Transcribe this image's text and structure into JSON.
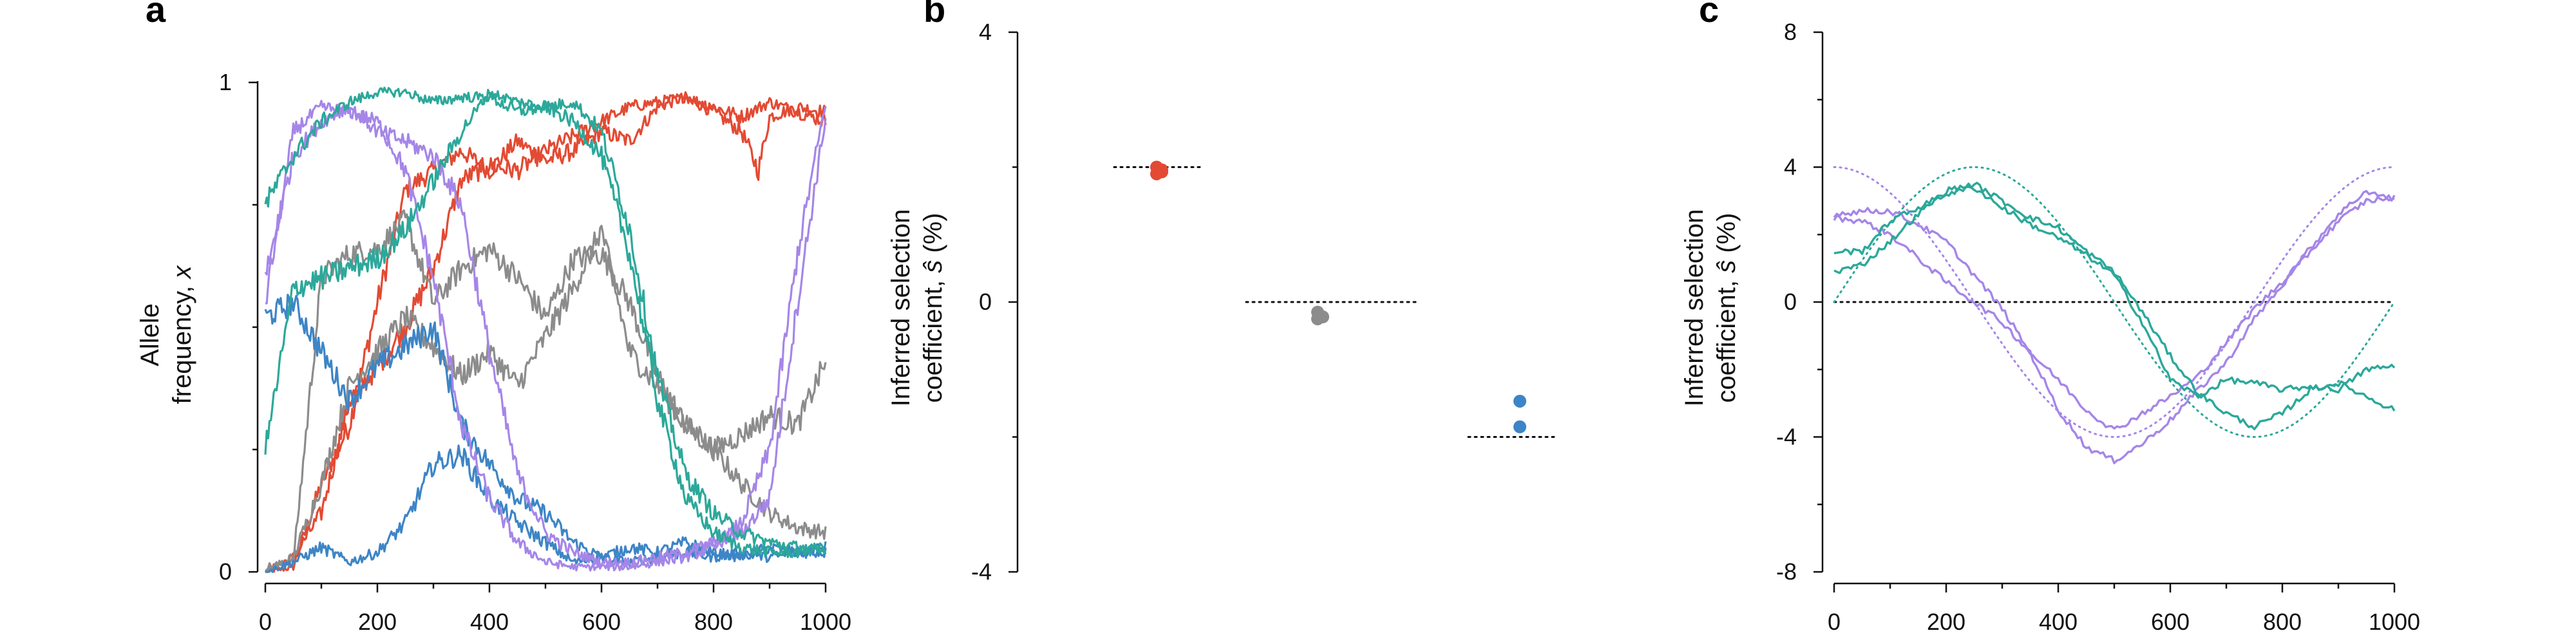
{
  "colors": {
    "red": "#e34a33",
    "gray": "#8c8c8c",
    "blue": "#3d85c6",
    "purple": "#a586e8",
    "teal": "#2ca89a",
    "axis": "#111111"
  },
  "chart_data": [
    {
      "panel": "a",
      "type": "line",
      "ylabel_lines": [
        "Allele",
        "frequency,"
      ],
      "ylabel_var": "x",
      "xlim": [
        0,
        1000
      ],
      "ylim": [
        0,
        1
      ],
      "x_ticks": [
        "0",
        "200",
        "400",
        "600",
        "800",
        "1000"
      ],
      "y_ticks": [
        "0",
        "1"
      ],
      "series": [
        {
          "color": "red",
          "x": [
            0,
            50,
            100,
            150,
            200,
            250,
            300,
            350,
            400,
            450,
            500,
            550,
            600,
            650,
            700,
            750,
            800,
            850,
            880,
            900,
            950,
            1000
          ],
          "y": [
            0.0,
            0.01,
            0.18,
            0.3,
            0.55,
            0.78,
            0.82,
            0.86,
            0.82,
            0.88,
            0.84,
            0.86,
            0.9,
            0.88,
            0.95,
            0.97,
            0.94,
            0.9,
            0.82,
            0.93,
            0.95,
            0.94
          ]
        },
        {
          "color": "red",
          "x": [
            0,
            50,
            100,
            150,
            200,
            250,
            300,
            350,
            400,
            450,
            500,
            550,
            600,
            650,
            700,
            750,
            800,
            850,
            900,
            950,
            1000
          ],
          "y": [
            0.0,
            0.03,
            0.12,
            0.35,
            0.42,
            0.5,
            0.62,
            0.8,
            0.83,
            0.82,
            0.86,
            0.89,
            0.92,
            0.95,
            0.96,
            0.97,
            0.95,
            0.93,
            0.96,
            0.94,
            0.92
          ]
        },
        {
          "color": "gray",
          "x": [
            0,
            50,
            100,
            150,
            200,
            250,
            300,
            350,
            400,
            450,
            500,
            550,
            600,
            650,
            700,
            750,
            800,
            850,
            900,
            950,
            1000
          ],
          "y": [
            0.01,
            0.02,
            0.6,
            0.65,
            0.66,
            0.72,
            0.55,
            0.62,
            0.66,
            0.6,
            0.52,
            0.64,
            0.65,
            0.55,
            0.4,
            0.3,
            0.25,
            0.18,
            0.12,
            0.09,
            0.08
          ]
        },
        {
          "color": "gray",
          "x": [
            0,
            50,
            100,
            150,
            200,
            250,
            300,
            350,
            400,
            450,
            500,
            550,
            600,
            650,
            700,
            750,
            800,
            850,
            900,
            950,
            1000
          ],
          "y": [
            0.0,
            0.03,
            0.18,
            0.38,
            0.45,
            0.52,
            0.46,
            0.4,
            0.45,
            0.38,
            0.48,
            0.58,
            0.7,
            0.45,
            0.38,
            0.3,
            0.25,
            0.28,
            0.32,
            0.3,
            0.43
          ]
        },
        {
          "color": "blue",
          "x": [
            0,
            50,
            100,
            150,
            200,
            250,
            300,
            350,
            400,
            450,
            500,
            550,
            600,
            650,
            700,
            750,
            800,
            850,
            900,
            950,
            1000
          ],
          "y": [
            0.52,
            0.55,
            0.45,
            0.35,
            0.42,
            0.46,
            0.5,
            0.3,
            0.22,
            0.15,
            0.12,
            0.06,
            0.03,
            0.02,
            0.03,
            0.04,
            0.03,
            0.04,
            0.03,
            0.04,
            0.04
          ]
        },
        {
          "color": "blue",
          "x": [
            0,
            50,
            100,
            150,
            200,
            250,
            300,
            350,
            400,
            450,
            500,
            550,
            600,
            650,
            700,
            750,
            800,
            850,
            900,
            950,
            1000
          ],
          "y": [
            0.0,
            0.02,
            0.05,
            0.02,
            0.04,
            0.1,
            0.22,
            0.24,
            0.15,
            0.1,
            0.06,
            0.02,
            0.03,
            0.05,
            0.04,
            0.06,
            0.04,
            0.03,
            0.05,
            0.04,
            0.05
          ]
        },
        {
          "color": "purple",
          "x": [
            0,
            50,
            100,
            150,
            200,
            250,
            300,
            350,
            400,
            450,
            500,
            550,
            600,
            650,
            700,
            750,
            800,
            850,
            900,
            950,
            1000
          ],
          "y": [
            0.55,
            0.9,
            0.95,
            0.94,
            0.92,
            0.82,
            0.6,
            0.3,
            0.15,
            0.06,
            0.02,
            0.01,
            0.01,
            0.01,
            0.02,
            0.03,
            0.05,
            0.1,
            0.25,
            0.65,
            0.96
          ]
        },
        {
          "color": "purple",
          "x": [
            0,
            50,
            100,
            150,
            200,
            250,
            300,
            350,
            400,
            450,
            500,
            550,
            600,
            650,
            700,
            750,
            800,
            850,
            900,
            950,
            1000
          ],
          "y": [
            0.6,
            0.85,
            0.92,
            0.95,
            0.9,
            0.88,
            0.85,
            0.75,
            0.45,
            0.2,
            0.08,
            0.04,
            0.02,
            0.02,
            0.03,
            0.04,
            0.06,
            0.08,
            0.15,
            0.55,
            0.93
          ]
        },
        {
          "color": "teal",
          "x": [
            0,
            50,
            100,
            150,
            200,
            250,
            300,
            350,
            400,
            450,
            500,
            550,
            600,
            650,
            700,
            750,
            800,
            850,
            900,
            950,
            1000
          ],
          "y": [
            0.75,
            0.85,
            0.92,
            0.96,
            0.98,
            0.98,
            0.96,
            0.97,
            0.97,
            0.94,
            0.95,
            0.92,
            0.85,
            0.65,
            0.35,
            0.15,
            0.08,
            0.05,
            0.04,
            0.04,
            0.05
          ]
        },
        {
          "color": "teal",
          "x": [
            0,
            50,
            100,
            150,
            200,
            250,
            300,
            350,
            400,
            450,
            500,
            550,
            600,
            650,
            700,
            750,
            800,
            850,
            900,
            950,
            1000
          ],
          "y": [
            0.25,
            0.58,
            0.6,
            0.62,
            0.64,
            0.7,
            0.8,
            0.9,
            0.98,
            0.96,
            0.95,
            0.96,
            0.9,
            0.7,
            0.4,
            0.2,
            0.12,
            0.08,
            0.06,
            0.05,
            0.04
          ]
        }
      ]
    },
    {
      "panel": "b",
      "type": "scatter",
      "ylabel_lines": [
        "Inferred selection",
        "coefficient,"
      ],
      "ylabel_var": "ŝ",
      "ylabel_unit": "(%)",
      "ylim": [
        -4,
        4
      ],
      "y_ticks": [
        "-4",
        "0",
        "4"
      ],
      "groups": [
        {
          "color": "red",
          "true_value": 2,
          "inferred": [
            1.9,
            1.96,
            2.0,
            1.93
          ]
        },
        {
          "color": "gray",
          "true_value": 0,
          "inferred": [
            -0.15,
            -0.22,
            -0.25
          ]
        },
        {
          "color": "blue",
          "true_value": -2,
          "inferred": [
            -1.47,
            -1.85
          ]
        }
      ]
    },
    {
      "panel": "c",
      "type": "line",
      "ylabel_lines": [
        "Inferred selection",
        "coefficient,"
      ],
      "ylabel_var": "ŝ",
      "ylabel_unit": "(%)",
      "xlim": [
        0,
        1000
      ],
      "ylim": [
        -8,
        8
      ],
      "x_ticks": [
        "0",
        "200",
        "400",
        "600",
        "800",
        "1000"
      ],
      "y_ticks": [
        "-8",
        "-4",
        "0",
        "4",
        "8"
      ],
      "true_curves": [
        {
          "color": "purple",
          "form": "4*cos(2*pi*t/1000)"
        },
        {
          "color": "teal",
          "form": "4*sin(2*pi*t/1000)"
        }
      ],
      "series": [
        {
          "color": "purple",
          "x": [
            0,
            50,
            100,
            150,
            200,
            250,
            300,
            350,
            400,
            450,
            500,
            550,
            600,
            650,
            700,
            750,
            800,
            850,
            900,
            950,
            1000
          ],
          "y": [
            2.6,
            2.7,
            2.7,
            2.3,
            1.8,
            0.8,
            -0.2,
            -1.5,
            -3.2,
            -4.3,
            -4.7,
            -4.2,
            -3.5,
            -2.6,
            -1.8,
            -0.5,
            0.5,
            1.5,
            2.4,
            3.0,
            3.1
          ]
        },
        {
          "color": "purple",
          "x": [
            0,
            50,
            100,
            150,
            200,
            250,
            300,
            350,
            400,
            450,
            500,
            550,
            600,
            650,
            700,
            750,
            800,
            850,
            900,
            950,
            1000
          ],
          "y": [
            2.5,
            2.4,
            2.0,
            1.3,
            0.6,
            0.0,
            -0.6,
            -1.5,
            -2.3,
            -3.2,
            -3.8,
            -3.3,
            -2.8,
            -2.2,
            -1.2,
            -0.2,
            0.6,
            1.6,
            2.6,
            3.3,
            3.0
          ]
        },
        {
          "color": "teal",
          "x": [
            0,
            50,
            100,
            150,
            200,
            250,
            300,
            350,
            400,
            450,
            500,
            550,
            600,
            650,
            700,
            750,
            800,
            850,
            900,
            950,
            1000
          ],
          "y": [
            1.5,
            1.5,
            2.4,
            2.8,
            3.2,
            3.4,
            2.8,
            2.3,
            1.9,
            1.4,
            0.8,
            -0.6,
            -2.3,
            -2.8,
            -2.3,
            -2.4,
            -2.6,
            -2.5,
            -2.6,
            -2.0,
            -1.9
          ]
        },
        {
          "color": "teal",
          "x": [
            0,
            50,
            100,
            150,
            200,
            250,
            300,
            350,
            400,
            450,
            500,
            550,
            600,
            650,
            700,
            750,
            800,
            850,
            900,
            950,
            1000
          ],
          "y": [
            0.9,
            1.1,
            1.8,
            2.6,
            3.3,
            3.5,
            3.0,
            2.5,
            2.2,
            1.5,
            0.9,
            -0.3,
            -1.6,
            -2.7,
            -3.3,
            -3.7,
            -3.3,
            -2.6,
            -2.4,
            -2.8,
            -3.2
          ]
        }
      ]
    }
  ]
}
